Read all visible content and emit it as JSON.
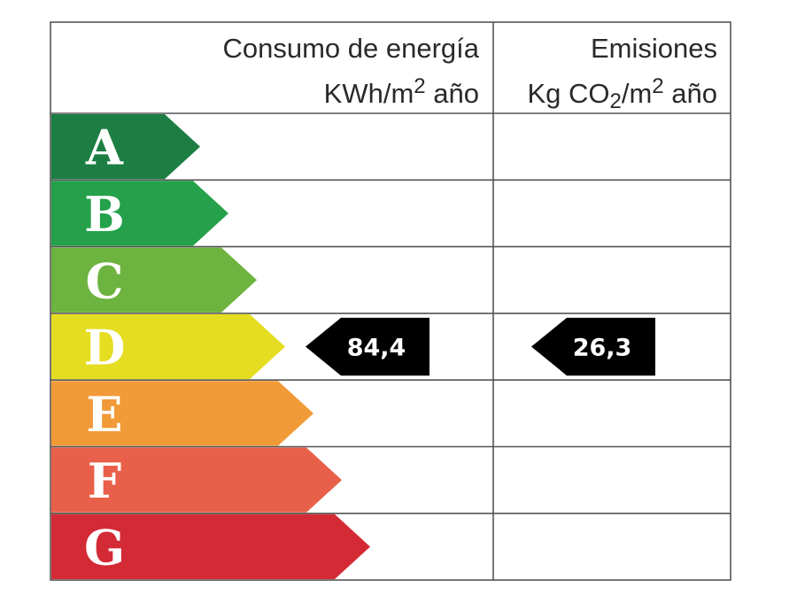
{
  "header": {
    "energy_line1": "Consumo de energía",
    "energy_unit": "KWh/m",
    "energy_sup": "2",
    "energy_tail": " año",
    "emissions_line1": "Emisiones",
    "emissions_unit_a": "Kg CO",
    "emissions_sub": "2",
    "emissions_unit_b": "/m",
    "emissions_sup": "2",
    "emissions_tail": " año"
  },
  "chart_data": {
    "type": "table",
    "categories": [
      "A",
      "B",
      "C",
      "D",
      "E",
      "F",
      "G"
    ],
    "colors": [
      "#1d7e43",
      "#24a14a",
      "#6db33f",
      "#e4dd21",
      "#f19a38",
      "#e9604a",
      "#d42a35"
    ],
    "rating": "D",
    "energy_value": "84,4",
    "emissions_value": "26,3"
  }
}
